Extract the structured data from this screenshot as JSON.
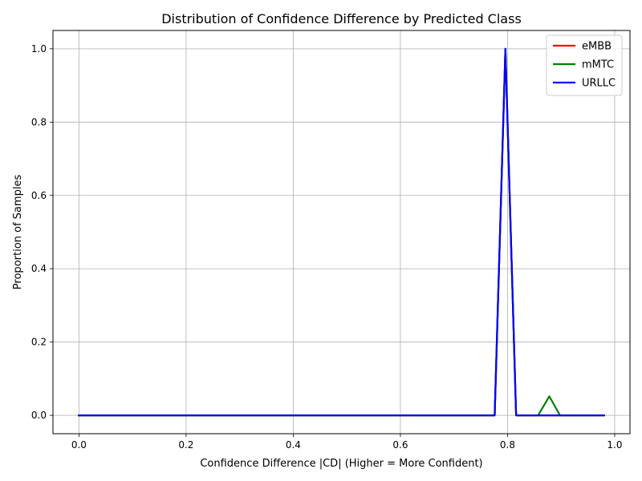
{
  "chart_data": {
    "type": "line",
    "title": "Distribution of Confidence Difference by Predicted Class",
    "xlabel": "Confidence Difference |CD| (Higher = More Confident)",
    "ylabel": "Proportion of Samples",
    "xlim": [
      -0.0485,
      1.0285
    ],
    "ylim": [
      -0.05,
      1.05
    ],
    "xticks": [
      0.0,
      0.2,
      0.4,
      0.6,
      0.8,
      1.0
    ],
    "xtick_labels": [
      "0.0",
      "0.2",
      "0.4",
      "0.6",
      "0.8",
      "1.0"
    ],
    "yticks": [
      0.0,
      0.2,
      0.4,
      0.6,
      0.8,
      1.0
    ],
    "ytick_labels": [
      "0.0",
      "0.2",
      "0.4",
      "0.6",
      "0.8",
      "1.0"
    ],
    "grid": true,
    "legend_position": "top-right",
    "series": [
      {
        "name": "eMBB",
        "color": "#ff0000",
        "x": [
          0.0,
          0.776,
          0.796,
          0.816,
          0.98
        ],
        "y": [
          0.0,
          0.0,
          1.0,
          0.0,
          0.0
        ]
      },
      {
        "name": "mMTC",
        "color": "#008000",
        "x": [
          0.0,
          0.776,
          0.796,
          0.816,
          0.857,
          0.878,
          0.898,
          0.98
        ],
        "y": [
          0.0,
          0.0,
          1.0,
          0.0,
          0.0,
          0.052,
          0.0,
          0.0
        ]
      },
      {
        "name": "URLLC",
        "color": "#0000ff",
        "x": [
          0.0,
          0.776,
          0.796,
          0.816,
          0.98
        ],
        "y": [
          0.0,
          0.0,
          1.0,
          0.0,
          0.0
        ]
      }
    ]
  }
}
